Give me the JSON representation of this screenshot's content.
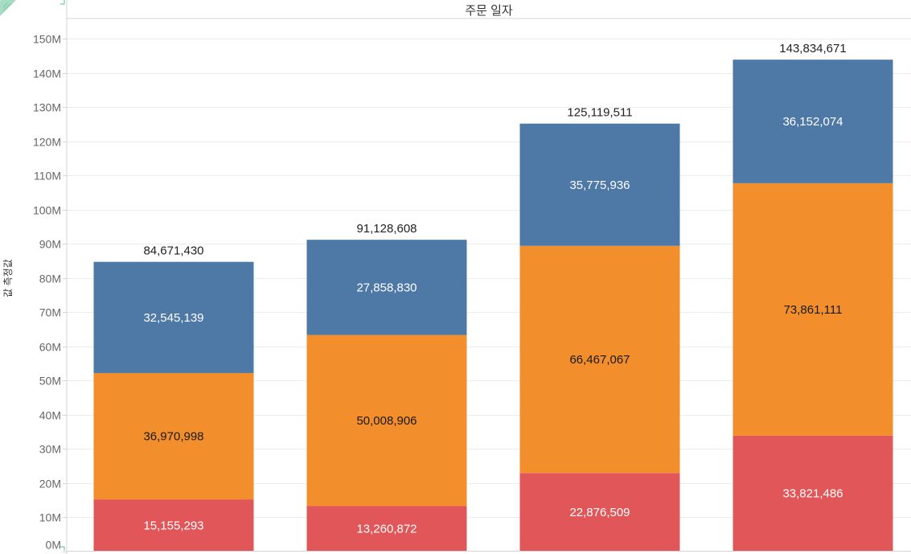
{
  "colors": {
    "red": "#E15759",
    "orange": "#F28E2B",
    "blue": "#4E79A7",
    "grid": "#ececec",
    "axis": "#d4d4d4",
    "corner": "#79c9a8"
  },
  "chart_data": {
    "type": "bar",
    "stacked": true,
    "title": "주문 일자",
    "xlabel": "주문 일자",
    "ylabel": "값 측정값",
    "ylim": [
      0,
      150000000
    ],
    "y_ticks": [
      0,
      10000000,
      20000000,
      30000000,
      40000000,
      50000000,
      60000000,
      70000000,
      80000000,
      90000000,
      100000000,
      110000000,
      120000000,
      130000000,
      140000000,
      150000000
    ],
    "y_tick_labels": [
      "0M",
      "10M",
      "20M",
      "30M",
      "40M",
      "50M",
      "60M",
      "70M",
      "80M",
      "90M",
      "100M",
      "110M",
      "120M",
      "130M",
      "140M",
      "150M"
    ],
    "grid": true,
    "legend": "none",
    "categories": [
      "",
      "",
      "",
      ""
    ],
    "series": [
      {
        "name": "series-1",
        "color": "#E15759",
        "label_color": "#ffffff",
        "values": [
          15155293,
          13260872,
          22876509,
          33821486
        ],
        "labels": [
          "15,155,293",
          "13,260,872",
          "22,876,509",
          "33,821,486"
        ]
      },
      {
        "name": "series-2",
        "color": "#F28E2B",
        "label_color": "#1a1a1a",
        "values": [
          36970998,
          50008906,
          66467067,
          73861111
        ],
        "labels": [
          "36,970,998",
          "50,008,906",
          "66,467,067",
          "73,861,111"
        ]
      },
      {
        "name": "series-3",
        "color": "#4E79A7",
        "label_color": "#ffffff",
        "values": [
          32545139,
          27858830,
          35775936,
          36152074
        ],
        "labels": [
          "32,545,139",
          "27,858,830",
          "35,775,936",
          "36,152,074"
        ]
      }
    ],
    "totals": [
      84671430,
      91128608,
      125119511,
      143834671
    ],
    "total_labels": [
      "84,671,430",
      "91,128,608",
      "125,119,511",
      "143,834,671"
    ]
  }
}
